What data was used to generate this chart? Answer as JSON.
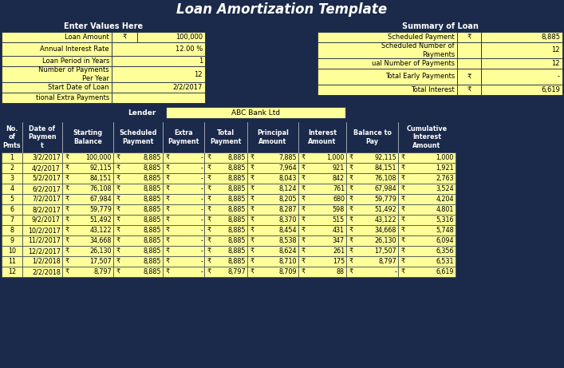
{
  "title": "Loan Amortization Template",
  "left_panel_header": "Enter Values Here",
  "right_panel_header": "Summary of Loan",
  "lender_label": "Lender",
  "lender_value": "ABC Bank Ltd",
  "header_color": "#1B2A4A",
  "cell_yellow": "#FFFF99",
  "bg_color": "#1B2A4A",
  "left_row_labels": [
    "Loan Amount",
    "Annual Interest Rate",
    "Loan Period in Years",
    "Number of Payments\nPer Year",
    "Start Date of Loan",
    "tional Extra Payments"
  ],
  "left_row_v1": [
    "₹",
    "12.00 %",
    "1",
    "12",
    "2/2/2017",
    ""
  ],
  "left_row_v2": [
    "100,000",
    "",
    "",
    "",
    "",
    ""
  ],
  "left_row_heights": [
    13,
    17,
    13,
    20,
    13,
    13
  ],
  "right_row_labels": [
    "Scheduled Payment",
    "Scheduled Number of\nPayments",
    "ual Number of Payments",
    "Total Early Payments",
    "Total Interest"
  ],
  "right_row_v1": [
    "₹",
    "",
    "",
    "₹",
    "₹"
  ],
  "right_row_v2": [
    "8,885",
    "12",
    "12",
    "-",
    "6,619"
  ],
  "right_row_heights": [
    13,
    20,
    13,
    20,
    13
  ],
  "table_headers": [
    "No.\nof\nPmts",
    "Date of\nPaymen\nt",
    "Starting\nBalance",
    "Scheduled\nPayment",
    "Extra\nPayment",
    "Total\nPayment",
    "Principal\nAmount",
    "Interest\nAmount",
    "Balance to\nPay",
    "Cumulative\nInterest\nAmount"
  ],
  "table_col_widths": [
    26,
    50,
    64,
    62,
    52,
    54,
    64,
    60,
    65,
    72
  ],
  "table_data": [
    [
      1,
      "3/2/2017",
      "100,000",
      "8,885",
      "-",
      "8,885",
      "7,885",
      "1,000",
      "92,115",
      "1,000"
    ],
    [
      2,
      "4/2/2017",
      "92,115",
      "8,885",
      "-",
      "8,885",
      "7,964",
      "921",
      "84,151",
      "1,921"
    ],
    [
      3,
      "5/2/2017",
      "84,151",
      "8,885",
      "-",
      "8,885",
      "8,043",
      "842",
      "76,108",
      "2,763"
    ],
    [
      4,
      "6/2/2017",
      "76,108",
      "8,885",
      "-",
      "8,885",
      "8,124",
      "761",
      "67,984",
      "3,524"
    ],
    [
      5,
      "7/2/2017",
      "67,984",
      "8,885",
      "-",
      "8,885",
      "8,205",
      "680",
      "59,779",
      "4,204"
    ],
    [
      6,
      "8/2/2017",
      "59,779",
      "8,885",
      "-",
      "8,885",
      "8,287",
      "598",
      "51,492",
      "4,801"
    ],
    [
      7,
      "9/2/2017",
      "51,492",
      "8,885",
      "-",
      "8,885",
      "8,370",
      "515",
      "43,122",
      "5,316"
    ],
    [
      8,
      "10/2/2017",
      "43,122",
      "8,885",
      "-",
      "8,885",
      "8,454",
      "431",
      "34,668",
      "5,748"
    ],
    [
      9,
      "11/2/2017",
      "34,668",
      "8,885",
      "-",
      "8,885",
      "8,538",
      "347",
      "26,130",
      "6,094"
    ],
    [
      10,
      "12/2/2017",
      "26,130",
      "8,885",
      "-",
      "8,885",
      "8,624",
      "261",
      "17,507",
      "6,356"
    ],
    [
      11,
      "1/2/2018",
      "17,507",
      "8,885",
      "-",
      "8,885",
      "8,710",
      "175",
      "8,797",
      "6,531"
    ],
    [
      12,
      "2/2/2018",
      "8,797",
      "8,885",
      "-",
      "8,797",
      "8,709",
      "88",
      "-",
      "6,619"
    ]
  ],
  "rupee": "₹"
}
